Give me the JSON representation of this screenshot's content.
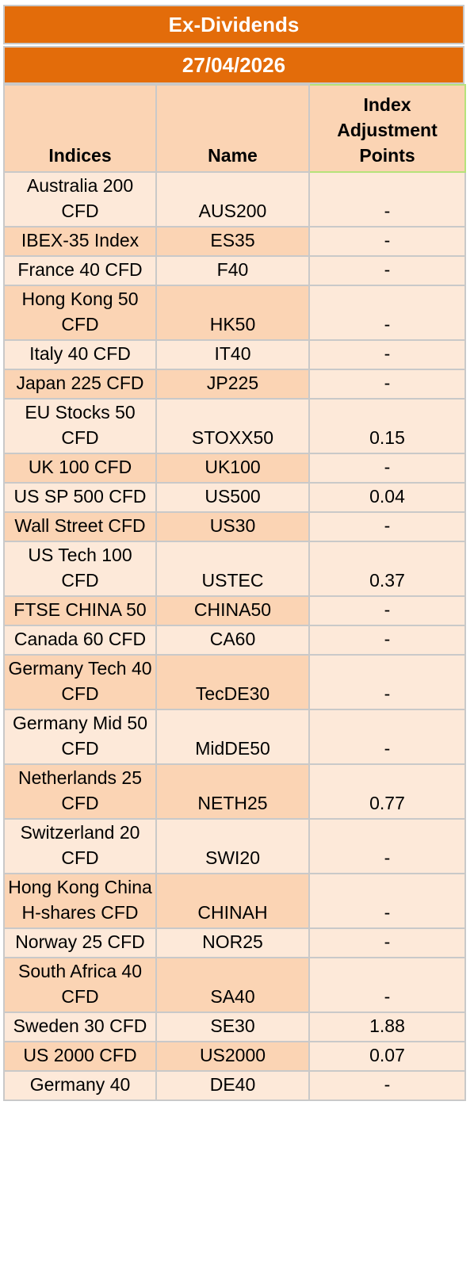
{
  "title": "Ex-Dividends",
  "date": "27/04/2026",
  "columns": {
    "index": "Indices",
    "name": "Name",
    "adjustment": "Index Adjustment Points"
  },
  "rows": [
    {
      "index": "Australia 200 CFD",
      "name": "AUS200",
      "adj": "-"
    },
    {
      "index": "IBEX-35 Index",
      "name": "ES35",
      "adj": "-"
    },
    {
      "index": "France 40 CFD",
      "name": "F40",
      "adj": "-"
    },
    {
      "index": "Hong Kong 50 CFD",
      "name": "HK50",
      "adj": "-"
    },
    {
      "index": "Italy 40 CFD",
      "name": "IT40",
      "adj": "-"
    },
    {
      "index": "Japan 225 CFD",
      "name": "JP225",
      "adj": "-"
    },
    {
      "index": "EU Stocks 50 CFD",
      "name": "STOXX50",
      "adj": "0.15"
    },
    {
      "index": "UK 100 CFD",
      "name": "UK100",
      "adj": "-"
    },
    {
      "index": "US SP 500 CFD",
      "name": "US500",
      "adj": "0.04"
    },
    {
      "index": "Wall Street CFD",
      "name": "US30",
      "adj": "-"
    },
    {
      "index": "US Tech 100 CFD",
      "name": "USTEC",
      "adj": "0.37"
    },
    {
      "index": "FTSE CHINA 50",
      "name": "CHINA50",
      "adj": "-"
    },
    {
      "index": "Canada 60 CFD",
      "name": "CA60",
      "adj": "-"
    },
    {
      "index": "Germany Tech 40 CFD",
      "name": "TecDE30",
      "adj": "-"
    },
    {
      "index": "Germany Mid 50 CFD",
      "name": "MidDE50",
      "adj": "-"
    },
    {
      "index": "Netherlands 25 CFD",
      "name": "NETH25",
      "adj": "0.77"
    },
    {
      "index": "Switzerland 20 CFD",
      "name": "SWI20",
      "adj": "-"
    },
    {
      "index": "Hong Kong China H-shares CFD",
      "name": "CHINAH",
      "adj": "-"
    },
    {
      "index": "Norway 25 CFD",
      "name": "NOR25",
      "adj": "-"
    },
    {
      "index": "South Africa 40 CFD",
      "name": "SA40",
      "adj": "-"
    },
    {
      "index": "Sweden 30 CFD",
      "name": "SE30",
      "adj": "1.88"
    },
    {
      "index": "US 2000 CFD",
      "name": "US2000",
      "adj": "0.07"
    },
    {
      "index": "Germany 40",
      "name": "DE40",
      "adj": "-"
    }
  ]
}
